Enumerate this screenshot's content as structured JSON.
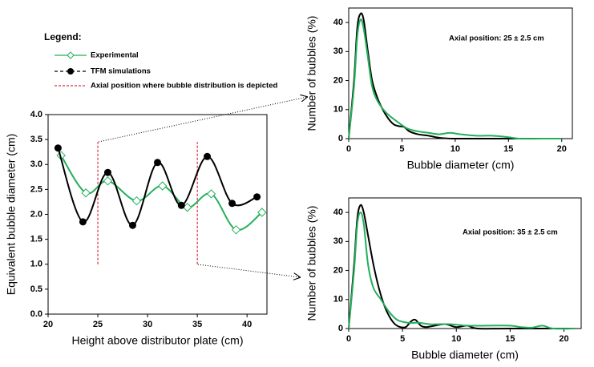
{
  "chart_data": [
    {
      "type": "line",
      "xlabel": "Height above distributor plate (cm)",
      "ylabel": "Equivalent  bubble  diameter (cm)",
      "legend_title": "Legend:",
      "legend": "upper left",
      "xlim": [
        20,
        42
      ],
      "xticks": [
        20,
        25,
        30,
        35,
        40
      ],
      "ylim": [
        0,
        4
      ],
      "yticks": [
        {
          "value": 0,
          "label": "0.0"
        },
        {
          "value": 0.5,
          "label": "0.5"
        },
        {
          "value": 1,
          "label": "1.0"
        },
        {
          "value": 1.5,
          "label": "1.5"
        },
        {
          "value": 2,
          "label": "2.0"
        },
        {
          "value": 2.5,
          "label": "2.5"
        },
        {
          "value": 3,
          "label": "3.0"
        },
        {
          "value": 3.5,
          "label": "3.5"
        },
        {
          "value": 4,
          "label": "4.0"
        }
      ],
      "series": [
        {
          "name": "Experimental",
          "color": "#22b05a",
          "marker": "diamond",
          "x": [
            21.3,
            23.8,
            26,
            28.9,
            31.5,
            34,
            36.4,
            38.9,
            41.5
          ],
          "values": [
            3.18,
            2.43,
            2.67,
            2.27,
            2.57,
            2.14,
            2.41,
            1.69,
            2.04
          ]
        },
        {
          "name": "TFM simulations",
          "color": "#000000",
          "marker": "circle",
          "x": [
            21,
            23.5,
            26,
            28.5,
            31,
            33.4,
            36,
            38.5,
            41
          ],
          "values": [
            3.33,
            1.85,
            2.84,
            1.78,
            3.04,
            2.18,
            3.16,
            2.22,
            2.35
          ]
        }
      ],
      "axial_lines": {
        "name": "Axial position where bubble distribution is depicted",
        "color": "#d0021b",
        "x": [
          25,
          35
        ],
        "ymin": [
          1,
          1
        ],
        "ymax": [
          3.45,
          3.45
        ]
      }
    },
    {
      "type": "line",
      "xlabel": "Bubble diameter (cm)",
      "ylabel": "Number of bubbles  (%)",
      "annotation": "Axial position: 25 ± 2.5 cm",
      "xlim": [
        0,
        21
      ],
      "xticks": [
        0,
        5,
        10,
        15,
        20
      ],
      "ylim": [
        0,
        45
      ],
      "yticks": [
        0,
        10,
        20,
        30,
        40
      ],
      "series": [
        {
          "color": "#000000",
          "x": [
            0,
            0.5,
            0.8,
            1.1,
            1.4,
            1.8,
            2.2,
            2.7,
            3.2,
            3.7,
            4.2,
            4.7,
            5.2,
            5.7,
            6.5,
            7.5,
            8.5,
            10,
            15,
            20
          ],
          "values": [
            0,
            20,
            38,
            43,
            41,
            30,
            20,
            14,
            10,
            7,
            5,
            4.3,
            4,
            2.5,
            1.5,
            1,
            0.3,
            0,
            0,
            0
          ]
        },
        {
          "color": "#22b05a",
          "x": [
            0,
            0.5,
            0.8,
            1.1,
            1.4,
            1.8,
            2.2,
            2.7,
            3.5,
            4.5,
            5.5,
            6.5,
            7.5,
            8.5,
            9.5,
            10.5,
            12,
            13.5,
            15,
            16,
            18,
            20
          ],
          "values": [
            0,
            18,
            35,
            41,
            38,
            28,
            18,
            13,
            9,
            6,
            3.5,
            2.5,
            2,
            1.5,
            2,
            1.5,
            1,
            1,
            0.5,
            0,
            0,
            0
          ]
        }
      ]
    },
    {
      "type": "line",
      "xlabel": "Bubble diameter (cm)",
      "ylabel": "Number of bubbles  (%)",
      "annotation": "Axial position: 35 ± 2.5 cm",
      "xlim": [
        0,
        21.6
      ],
      "xticks": [
        0,
        5,
        10,
        15,
        20
      ],
      "ylim": [
        0,
        45
      ],
      "yticks": [
        0,
        10,
        20,
        30,
        40
      ],
      "series": [
        {
          "color": "#000000",
          "x": [
            0,
            0.5,
            0.8,
            1.1,
            1.4,
            1.8,
            2.3,
            2.8,
            3.3,
            3.8,
            4.3,
            4.8,
            5.3,
            5.8,
            6.2,
            6.7,
            7.2,
            8,
            9,
            10,
            11,
            12,
            15,
            21
          ],
          "values": [
            0,
            22,
            38,
            42.5,
            40,
            32,
            22,
            14,
            8,
            4,
            1.5,
            0.5,
            0.5,
            2.5,
            3,
            1,
            0.5,
            1,
            1.5,
            0.5,
            1,
            0,
            0,
            0
          ]
        },
        {
          "color": "#22b05a",
          "x": [
            0,
            0.5,
            0.8,
            1.1,
            1.4,
            1.8,
            2.3,
            3,
            3.7,
            4.5,
            5.5,
            6.5,
            7.5,
            8.5,
            9.5,
            11,
            13,
            15,
            16,
            17,
            18,
            19,
            21
          ],
          "values": [
            0,
            20,
            36,
            40,
            36,
            22,
            14,
            10,
            6,
            3,
            2,
            2,
            1.5,
            1.5,
            1.5,
            1,
            1,
            1,
            0.5,
            0.3,
            1,
            0,
            0
          ]
        }
      ]
    }
  ]
}
